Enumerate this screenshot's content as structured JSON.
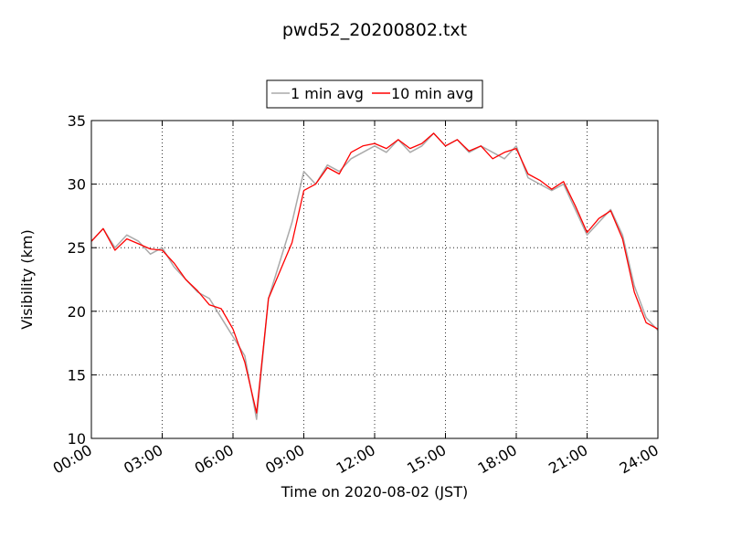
{
  "chart_data": {
    "type": "line",
    "title": "pwd52_20200802.txt",
    "xlabel": "Time on 2020-08-02 (JST)",
    "ylabel": "Visibility (km)",
    "xlim": [
      "00:00",
      "24:00"
    ],
    "ylim": [
      10,
      35
    ],
    "x_ticks": [
      "00:00",
      "03:00",
      "06:00",
      "09:00",
      "12:00",
      "15:00",
      "18:00",
      "21:00",
      "24:00"
    ],
    "y_ticks": [
      "10",
      "15",
      "20",
      "25",
      "30",
      "35"
    ],
    "grid": true,
    "legend_position": "top-center",
    "series": [
      {
        "name": "1 min avg",
        "color": "#aaaaaa",
        "time": [
          "00:00",
          "00:30",
          "01:00",
          "01:30",
          "02:00",
          "02:30",
          "03:00",
          "03:30",
          "04:00",
          "04:30",
          "05:00",
          "05:30",
          "06:00",
          "06:30",
          "07:00",
          "07:30",
          "08:00",
          "08:30",
          "09:00",
          "09:30",
          "10:00",
          "10:30",
          "11:00",
          "11:30",
          "12:00",
          "12:30",
          "13:00",
          "13:30",
          "14:00",
          "14:30",
          "15:00",
          "15:30",
          "16:00",
          "16:30",
          "17:00",
          "17:30",
          "18:00",
          "18:30",
          "19:00",
          "19:30",
          "20:00",
          "20:30",
          "21:00",
          "21:30",
          "22:00",
          "22:30",
          "23:00",
          "23:30",
          "24:00"
        ],
        "values": [
          25.5,
          26.5,
          25.0,
          26.0,
          25.5,
          24.5,
          25.0,
          23.5,
          22.5,
          21.5,
          21.0,
          19.5,
          18.0,
          16.5,
          11.5,
          21.0,
          24.0,
          27.0,
          31.0,
          30.0,
          31.5,
          31.0,
          32.0,
          32.5,
          33.0,
          32.5,
          33.5,
          32.5,
          33.0,
          34.0,
          33.0,
          33.5,
          32.5,
          33.0,
          32.5,
          32.0,
          33.0,
          30.5,
          30.0,
          29.5,
          30.0,
          28.0,
          26.0,
          27.0,
          28.0,
          26.0,
          22.0,
          19.5,
          18.5
        ]
      },
      {
        "name": "10 min avg",
        "color": "#ff0000",
        "time": [
          "00:00",
          "00:30",
          "01:00",
          "01:30",
          "02:00",
          "02:30",
          "03:00",
          "03:30",
          "04:00",
          "04:30",
          "05:00",
          "05:30",
          "06:00",
          "06:30",
          "07:00",
          "07:30",
          "08:00",
          "08:30",
          "09:00",
          "09:30",
          "10:00",
          "10:30",
          "11:00",
          "11:30",
          "12:00",
          "12:30",
          "13:00",
          "13:30",
          "14:00",
          "14:30",
          "15:00",
          "15:30",
          "16:00",
          "16:30",
          "17:00",
          "17:30",
          "18:00",
          "18:30",
          "19:00",
          "19:30",
          "20:00",
          "20:30",
          "21:00",
          "21:30",
          "22:00",
          "22:30",
          "23:00",
          "23:30",
          "24:00"
        ],
        "values": [
          25.5,
          26.5,
          24.8,
          25.7,
          25.3,
          24.9,
          24.8,
          23.8,
          22.5,
          21.6,
          20.5,
          20.2,
          18.6,
          16.0,
          12.0,
          21.0,
          23.2,
          25.4,
          29.5,
          30.0,
          31.3,
          30.8,
          32.5,
          33.0,
          33.2,
          32.8,
          33.5,
          32.8,
          33.2,
          34.0,
          33.0,
          33.5,
          32.6,
          33.0,
          32.0,
          32.5,
          32.8,
          30.8,
          30.3,
          29.6,
          30.2,
          28.3,
          26.2,
          27.3,
          27.9,
          25.7,
          21.5,
          19.1,
          18.6
        ]
      }
    ]
  }
}
